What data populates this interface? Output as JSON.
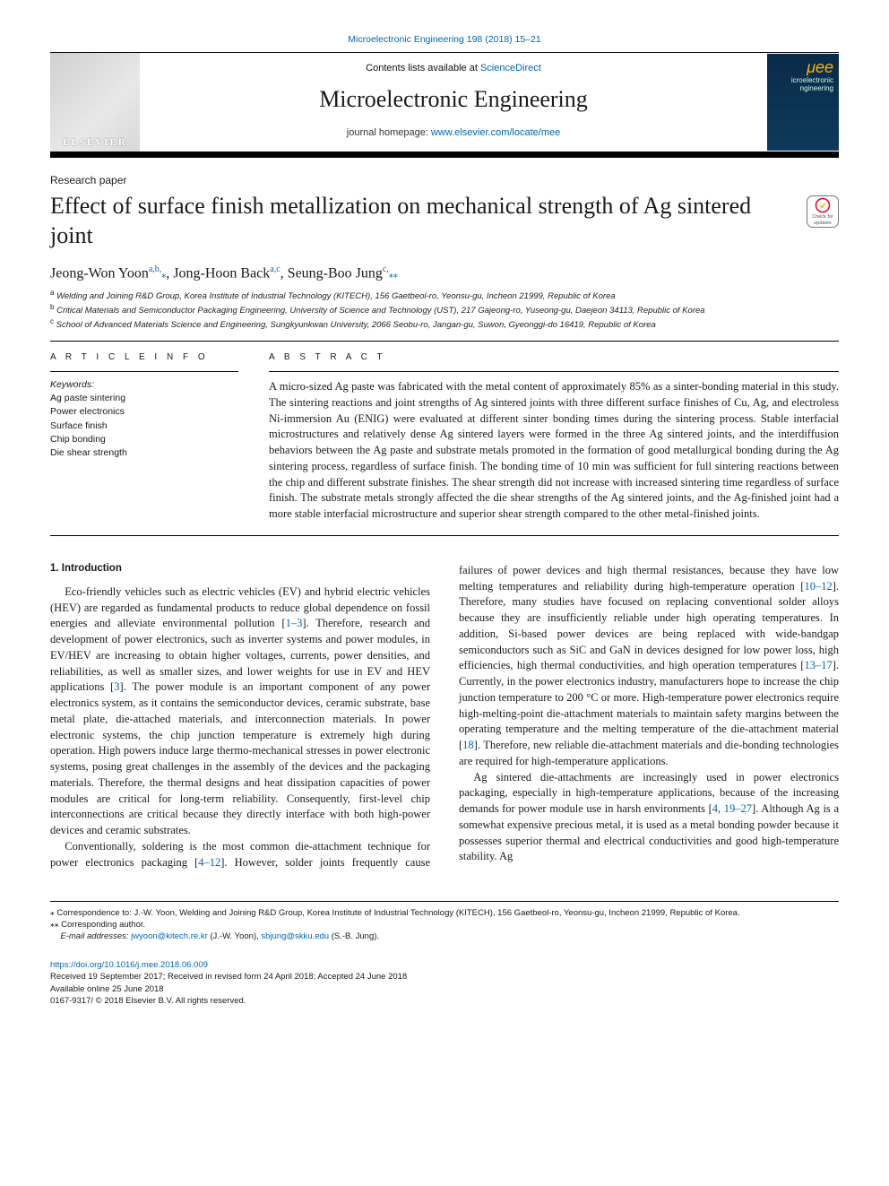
{
  "journal_ref_text": "Microelectronic Engineering 198 (2018) 15–21",
  "header": {
    "publisher_logo_text": "ELSEVIER",
    "contents_prefix": "Contents lists available at ",
    "contents_link": "ScienceDirect",
    "journal_name": "Microelectronic Engineering",
    "homepage_prefix": "journal homepage: ",
    "homepage_link": "www.elsevier.com/locate/mee",
    "cover_mu": "μee",
    "cover_line1": "icroelectronic",
    "cover_line2": "ngineering"
  },
  "updates_badge": {
    "line1": "Check for",
    "line2": "updates"
  },
  "paper_type": "Research paper",
  "title": "Effect of surface finish metallization on mechanical strength of Ag sintered joint",
  "authors_html": "Jeong-Won Yoon<sup>a,b,</sup><span class='star'>⁎</span>, Jong-Hoon Back<sup>a,c</sup>, Seung-Boo Jung<sup>c,</sup><span class='star'>⁎⁎</span>",
  "affiliations": {
    "a": "Welding and Joining R&D Group, Korea Institute of Industrial Technology (KITECH), 156 Gaetbeol-ro, Yeonsu-gu, Incheon 21999, Republic of Korea",
    "b": "Critical Materials and Semiconductor Packaging Engineering, University of Science and Technology (UST), 217 Gajeong-ro, Yuseong-gu, Daejeon 34113, Republic of Korea",
    "c": "School of Advanced Materials Science and Engineering, Sungkyunkwan University, 2066 Seobu-ro, Jangan-gu, Suwon, Gyeonggi-do 16419, Republic of Korea"
  },
  "artinfo_heading": "A R T I C L E  I N F O",
  "abstract_heading": "A B S T R A C T",
  "keywords_label": "Keywords:",
  "keywords": [
    "Ag paste sintering",
    "Power electronics",
    "Surface finish",
    "Chip bonding",
    "Die shear strength"
  ],
  "abstract": "A micro-sized Ag paste was fabricated with the metal content of approximately 85% as a sinter-bonding material in this study. The sintering reactions and joint strengths of Ag sintered joints with three different surface finishes of Cu, Ag, and electroless Ni-immersion Au (ENIG) were evaluated at different sinter bonding times during the sintering process. Stable interfacial microstructures and relatively dense Ag sintered layers were formed in the three Ag sintered joints, and the interdiffusion behaviors between the Ag paste and substrate metals promoted in the formation of good metallurgical bonding during the Ag sintering process, regardless of surface finish. The bonding time of 10 min was sufficient for full sintering reactions between the chip and different substrate finishes. The shear strength did not increase with increased sintering time regardless of surface finish. The substrate metals strongly affected the die shear strengths of the Ag sintered joints, and the Ag-finished joint had a more stable interfacial microstructure and superior shear strength compared to the other metal-finished joints.",
  "section1_heading": "1. Introduction",
  "para1": "Eco-friendly vehicles such as electric vehicles (EV) and hybrid electric vehicles (HEV) are regarded as fundamental products to reduce global dependence on fossil energies and alleviate environmental pollution [<span class='cite'>1–3</span>]. Therefore, research and development of power electronics, such as inverter systems and power modules, in EV/HEV are increasing to obtain higher voltages, currents, power densities, and reliabilities, as well as smaller sizes, and lower weights for use in EV and HEV applications [<span class='cite'>3</span>]. The power module is an important component of any power electronics system, as it contains the semiconductor devices, ceramic substrate, base metal plate, die-attached materials, and interconnection materials. In power electronic systems, the chip junction temperature is extremely high during operation. High powers induce large thermo-mechanical stresses in power electronic systems, posing great challenges in the assembly of the devices and the packaging materials. Therefore, the thermal designs and heat dissipation capacities of power modules are critical for long-term reliability. Consequently, first-level chip interconnections are critical because they directly interface with both high-power devices and ceramic substrates.",
  "para2": "Conventionally, soldering is the most common die-attachment technique for power electronics packaging [<span class='cite'>4–12</span>]. However, solder joints frequently cause failures of power devices and high thermal resistances, because they have low melting temperatures and reliability during high-temperature operation [<span class='cite'>10–12</span>]. Therefore, many studies have focused on replacing conventional solder alloys because they are insufficiently reliable under high operating temperatures. In addition, Si-based power devices are being replaced with wide-bandgap semiconductors such as SiC and GaN in devices designed for low power loss, high efficiencies, high thermal conductivities, and high operation temperatures [<span class='cite'>13–17</span>]. Currently, in the power electronics industry, manufacturers hope to increase the chip junction temperature to 200 °C or more. High-temperature power electronics require high-melting-point die-attachment materials to maintain safety margins between the operating temperature and the melting temperature of the die-attachment material [<span class='cite'>18</span>]. Therefore, new reliable die-attachment materials and die-bonding technologies are required for high-temperature applications.",
  "para3": "Ag sintered die-attachments are increasingly used in power electronics packaging, especially in high-temperature applications, because of the increasing demands for power module use in harsh environments [<span class='cite'>4</span>, <span class='cite'>19–27</span>]. Although Ag is a somewhat expensive precious metal, it is used as a metal bonding powder because it possesses superior thermal and electrical conductivities and good high-temperature stability. Ag",
  "footnotes": {
    "corr1": "⁎ Correspondence to: J.-W. Yoon, Welding and Joining R&D Group, Korea Institute of Industrial Technology (KITECH), 156 Gaetbeol-ro, Yeonsu-gu, Incheon 21999, Republic of Korea.",
    "corr2": "⁎⁎ Corresponding author.",
    "email_label": "E-mail addresses:",
    "email1": "jwyoon@kitech.re.kr",
    "email1_who": "(J.-W. Yoon),",
    "email2": "sbjung@skku.edu",
    "email2_who": "(S.-B. Jung)."
  },
  "doi_block": {
    "doi": "https://doi.org/10.1016/j.mee.2018.06.009",
    "received": "Received 19 September 2017; Received in revised form 24 April 2018; Accepted 24 June 2018",
    "available": "Available online 25 June 2018",
    "copyright": "0167-9317/ © 2018 Elsevier B.V. All rights reserved."
  },
  "colors": {
    "link": "#0066b3",
    "text": "#1a1a1a",
    "cover_bg_top": "#0a2a4a",
    "cover_bg_bottom": "#0d3a5a",
    "cover_accent": "#ffb400"
  }
}
